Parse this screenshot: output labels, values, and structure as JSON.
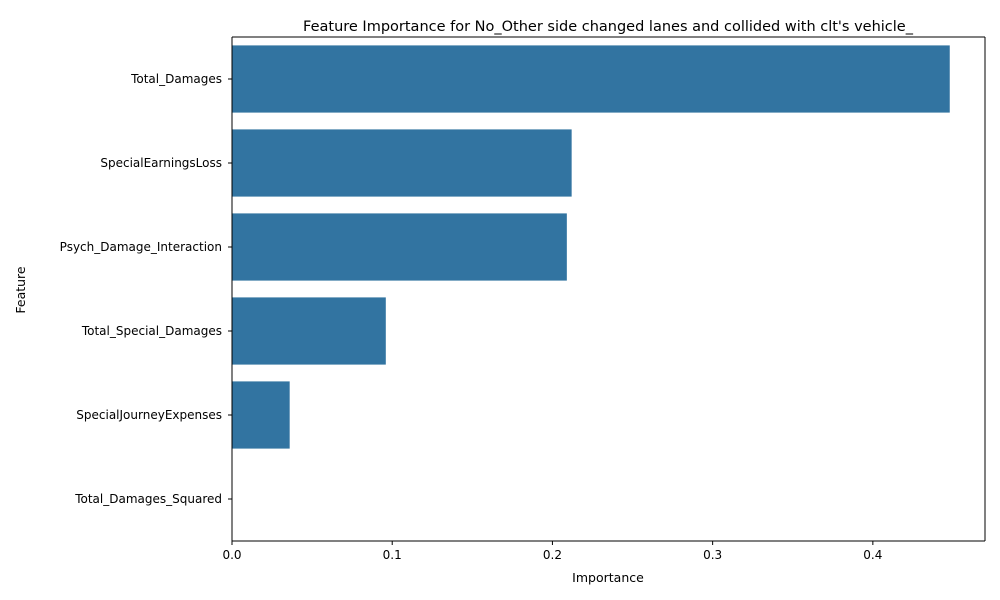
{
  "chart_data": {
    "type": "bar",
    "orientation": "horizontal",
    "title": "Feature Importance for No_Other side changed lanes and collided with clt's vehicle_",
    "xlabel": "Importance",
    "ylabel": "Feature",
    "categories": [
      "Total_Damages",
      "SpecialEarningsLoss",
      "Psych_Damage_Interaction",
      "Total_Special_Damages",
      "SpecialJourneyExpenses",
      "Total_Damages_Squared"
    ],
    "values": [
      0.448,
      0.212,
      0.209,
      0.096,
      0.036,
      0.0
    ],
    "xlim": [
      0,
      0.47
    ],
    "xticks": [
      0.0,
      0.1,
      0.2,
      0.3,
      0.4
    ],
    "xtick_labels": [
      "0.0",
      "0.1",
      "0.2",
      "0.3",
      "0.4"
    ],
    "bar_color": "#3274a1",
    "grid": false,
    "legend": "none"
  }
}
